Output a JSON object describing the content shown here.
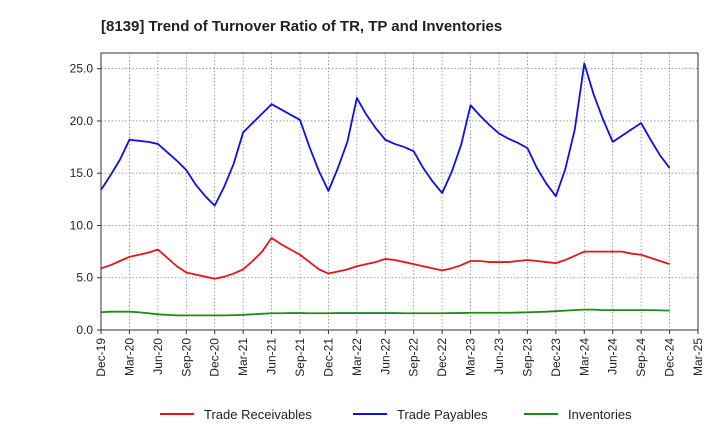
{
  "chart_data": {
    "type": "line",
    "title": "[8139]  Trend of Turnover Ratio of TR, TP and Inventories",
    "xlabel": "",
    "ylabel": "",
    "ylim": [
      0,
      26.5
    ],
    "yticks": [
      "0.0",
      "5.0",
      "10.0",
      "15.0",
      "20.0",
      "25.0"
    ],
    "ytick_values": [
      0,
      5,
      10,
      15,
      20,
      25
    ],
    "xticks": [
      "Dec-19",
      "Mar-20",
      "Jun-20",
      "Sep-20",
      "Dec-20",
      "Mar-21",
      "Jun-21",
      "Sep-21",
      "Dec-21",
      "Mar-22",
      "Jun-22",
      "Sep-22",
      "Dec-22",
      "Mar-23",
      "Jun-23",
      "Sep-23",
      "Dec-23",
      "Mar-24",
      "Jun-24",
      "Sep-24",
      "Dec-24",
      "Mar-25"
    ],
    "x_months": [
      "Dec-19",
      "Jan-20",
      "Feb-20",
      "Mar-20",
      "Apr-20",
      "May-20",
      "Jun-20",
      "Jul-20",
      "Aug-20",
      "Sep-20",
      "Oct-20",
      "Nov-20",
      "Dec-20",
      "Jan-21",
      "Feb-21",
      "Mar-21",
      "Apr-21",
      "May-21",
      "Jun-21",
      "Jul-21",
      "Aug-21",
      "Sep-21",
      "Oct-21",
      "Nov-21",
      "Dec-21",
      "Jan-22",
      "Feb-22",
      "Mar-22",
      "Apr-22",
      "May-22",
      "Jun-22",
      "Jul-22",
      "Aug-22",
      "Sep-22",
      "Oct-22",
      "Nov-22",
      "Dec-22",
      "Jan-23",
      "Feb-23",
      "Mar-23",
      "Apr-23",
      "May-23",
      "Jun-23",
      "Jul-23",
      "Aug-23",
      "Sep-23",
      "Oct-23",
      "Nov-23",
      "Dec-23",
      "Jan-24",
      "Feb-24",
      "Mar-24",
      "Apr-24",
      "May-24",
      "Jun-24",
      "Jul-24",
      "Aug-24",
      "Sep-24",
      "Oct-24",
      "Nov-24",
      "Dec-24"
    ],
    "grid": true,
    "legend_position": "bottom",
    "series": [
      {
        "name": "Trade Receivables",
        "color": "#e8141c",
        "values": [
          5.9,
          6.2,
          6.6,
          7.0,
          7.2,
          7.4,
          7.7,
          6.9,
          6.1,
          5.5,
          5.3,
          5.1,
          4.9,
          5.1,
          5.4,
          5.8,
          6.6,
          7.5,
          8.8,
          8.2,
          7.7,
          7.2,
          6.5,
          5.8,
          5.4,
          5.6,
          5.8,
          6.1,
          6.3,
          6.5,
          6.8,
          6.7,
          6.5,
          6.3,
          6.1,
          5.9,
          5.7,
          5.9,
          6.2,
          6.6,
          6.6,
          6.5,
          6.5,
          6.5,
          6.6,
          6.7,
          6.6,
          6.5,
          6.4,
          6.7,
          7.1,
          7.5,
          7.5,
          7.5,
          7.5,
          7.5,
          7.3,
          7.2,
          6.9,
          6.6,
          6.3
        ]
      },
      {
        "name": "Trade Payables",
        "color": "#1010dd",
        "values": [
          13.4,
          14.8,
          16.3,
          18.2,
          18.1,
          18.0,
          17.8,
          17.0,
          16.2,
          15.3,
          13.9,
          12.8,
          11.9,
          13.7,
          15.9,
          18.9,
          19.8,
          20.7,
          21.6,
          21.1,
          20.6,
          20.1,
          17.5,
          15.2,
          13.3,
          15.5,
          18.0,
          22.2,
          20.6,
          19.3,
          18.2,
          17.8,
          17.5,
          17.1,
          15.5,
          14.2,
          13.1,
          15.1,
          17.7,
          21.5,
          20.5,
          19.6,
          18.8,
          18.3,
          17.9,
          17.4,
          15.5,
          14.0,
          12.8,
          15.4,
          19.2,
          25.5,
          22.5,
          20.1,
          18.0,
          18.6,
          19.2,
          19.8,
          18.2,
          16.7,
          15.5
        ]
      },
      {
        "name": "Inventories",
        "color": "#1a8c1a",
        "values": [
          1.7,
          1.75,
          1.75,
          1.75,
          1.7,
          1.6,
          1.5,
          1.45,
          1.4,
          1.4,
          1.4,
          1.4,
          1.4,
          1.4,
          1.42,
          1.45,
          1.5,
          1.55,
          1.6,
          1.6,
          1.62,
          1.62,
          1.6,
          1.6,
          1.6,
          1.62,
          1.62,
          1.62,
          1.62,
          1.62,
          1.62,
          1.62,
          1.6,
          1.6,
          1.6,
          1.6,
          1.6,
          1.62,
          1.62,
          1.65,
          1.65,
          1.65,
          1.65,
          1.65,
          1.67,
          1.7,
          1.72,
          1.75,
          1.8,
          1.85,
          1.9,
          1.95,
          1.95,
          1.9,
          1.9,
          1.9,
          1.9,
          1.9,
          1.9,
          1.88,
          1.85
        ]
      }
    ]
  }
}
